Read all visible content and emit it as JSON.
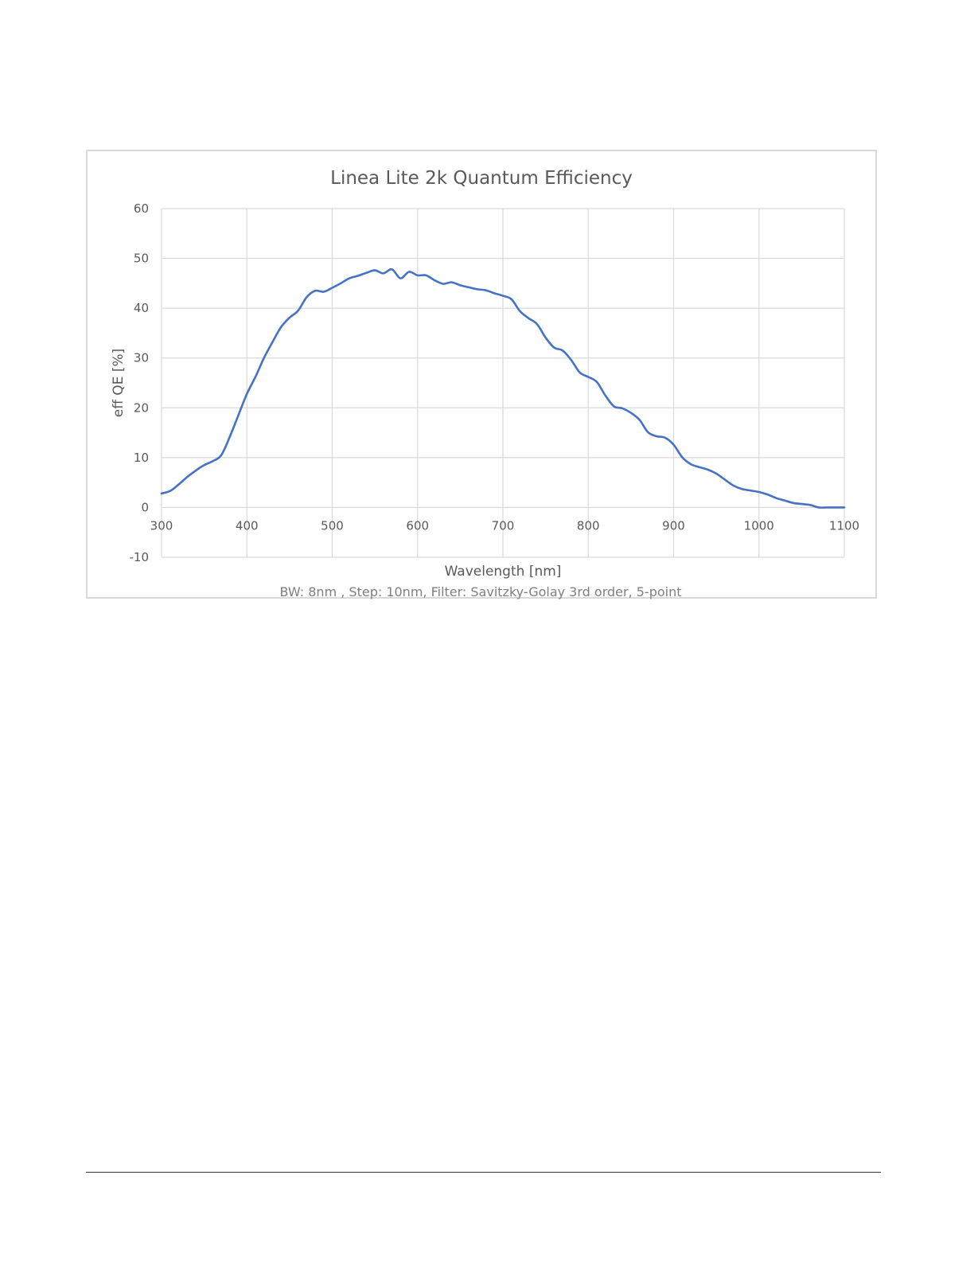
{
  "chart_data": {
    "type": "line",
    "title": "Linea Lite 2k Quantum Efficiency",
    "xlabel": "Wavelength [nm]",
    "ylabel": "eff QE [%]",
    "note": "BW: 8nm , Step: 10nm, Filter: Savitzky-Golay 3rd order, 5-point",
    "xlim": [
      300,
      1100
    ],
    "ylim": [
      -10,
      60
    ],
    "x_ticks": [
      "300",
      "400",
      "500",
      "600",
      "700",
      "800",
      "900",
      "1000",
      "1100"
    ],
    "y_ticks": [
      "60",
      "50",
      "40",
      "30",
      "20",
      "10",
      "0",
      "-10"
    ],
    "grid": true,
    "line_color": "#4472c4",
    "grid_color": "#d9d9d9",
    "series": [
      {
        "x": [
          300,
          310,
          320,
          330,
          340,
          350,
          360,
          370,
          380,
          390,
          400,
          410,
          420,
          430,
          440,
          450,
          460,
          470,
          480,
          490,
          500,
          510,
          520,
          530,
          540,
          550,
          560,
          570,
          580,
          590,
          600,
          610,
          620,
          630,
          640,
          650,
          660,
          670,
          680,
          690,
          700,
          710,
          720,
          730,
          740,
          750,
          760,
          770,
          780,
          790,
          800,
          810,
          820,
          830,
          840,
          850,
          860,
          870,
          880,
          890,
          900,
          910,
          920,
          930,
          940,
          950,
          960,
          970,
          980,
          990,
          1000,
          1010,
          1020,
          1030,
          1040,
          1050,
          1060,
          1070,
          1080,
          1090,
          1100
        ],
        "values": [
          2.8,
          3.3,
          4.6,
          6.1,
          7.4,
          8.5,
          9.3,
          10.5,
          14.2,
          18.5,
          22.8,
          26.2,
          30.0,
          33.2,
          36.2,
          38.1,
          39.5,
          42.2,
          43.5,
          43.3,
          44.1,
          45.0,
          46.0,
          46.5,
          47.1,
          47.6,
          47.0,
          47.8,
          46.0,
          47.3,
          46.6,
          46.6,
          45.6,
          44.9,
          45.2,
          44.6,
          44.2,
          43.8,
          43.6,
          43.0,
          42.5,
          41.8,
          39.4,
          38.0,
          36.8,
          34.1,
          32.1,
          31.5,
          29.6,
          27.1,
          26.2,
          25.2,
          22.5,
          20.3,
          19.9,
          19.0,
          17.6,
          15.1,
          14.3,
          14.0,
          12.6,
          10.1,
          8.7,
          8.1,
          7.6,
          6.8,
          5.6,
          4.4,
          3.7,
          3.4,
          3.1,
          2.6,
          1.9,
          1.4,
          0.9,
          0.7,
          0.5,
          0.0,
          0.0,
          0.0,
          0.0
        ]
      }
    ]
  }
}
